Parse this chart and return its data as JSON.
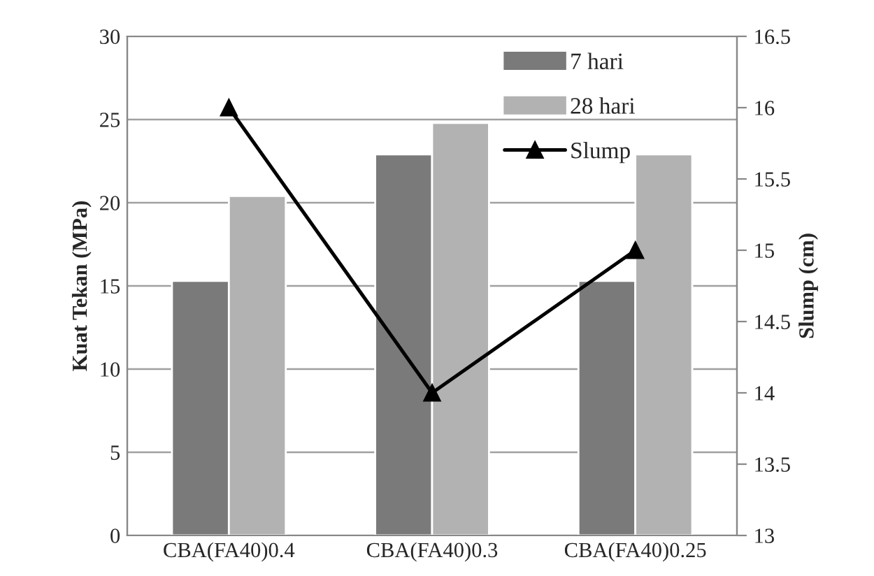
{
  "chart_data": {
    "type": "bar",
    "categories": [
      "CBA(FA40)0.4",
      "CBA(FA40)0.3",
      "CBA(FA40)0.25"
    ],
    "series": [
      {
        "name": "7 hari",
        "color": "#7a7a7a",
        "values": [
          15.3,
          22.9,
          15.3
        ]
      },
      {
        "name": "28 hari",
        "color": "#b2b2b2",
        "values": [
          20.4,
          24.8,
          22.9
        ]
      },
      {
        "name": "Slump",
        "type": "line",
        "axis": "y2",
        "color": "#000000",
        "marker": "triangle",
        "line_style": "solid",
        "values": [
          16,
          14,
          15
        ]
      }
    ],
    "ylabel": "Kuat Tekan (MPa)",
    "y2label": "Slump (cm)",
    "ylim": [
      0,
      30
    ],
    "yticks": [
      0,
      5,
      10,
      15,
      20,
      25,
      30
    ],
    "y2lim": [
      13,
      16.5
    ],
    "y2ticks": [
      13,
      {
        "value": 13.5,
        "label": "13.5"
      },
      14,
      {
        "value": 14.5,
        "label": "14.5"
      },
      15,
      {
        "value": 15.5,
        "label": "15.5"
      },
      16,
      {
        "value": 16.5,
        "label": "16.5"
      }
    ],
    "grid": "y",
    "legend": "top right"
  }
}
